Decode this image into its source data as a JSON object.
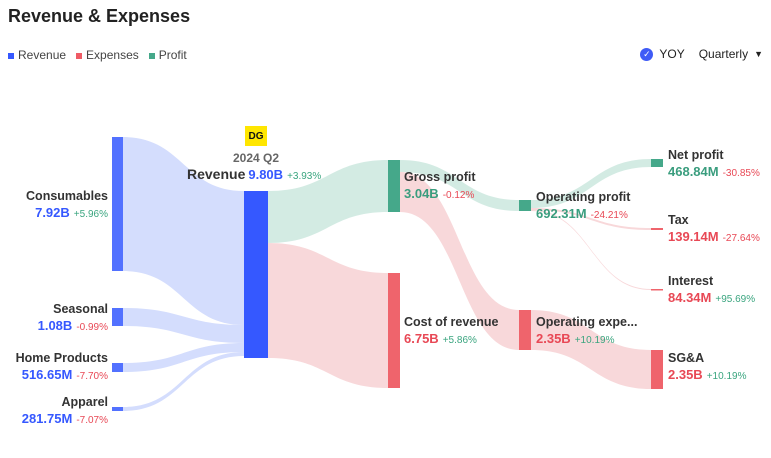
{
  "title": "Revenue & Expenses",
  "legend": [
    {
      "label": "Revenue",
      "color": "#3558ff"
    },
    {
      "label": "Expenses",
      "color": "#ef5b65"
    },
    {
      "label": "Profit",
      "color": "#45a88a"
    }
  ],
  "controls": {
    "yoy": "YOY",
    "period": "Quarterly"
  },
  "chart_data": {
    "type": "sankey",
    "period": "2024 Q2",
    "logo": "DG",
    "nodes": [
      {
        "id": "consumables",
        "name": "Consumables",
        "value": "7.92B",
        "change": "+5.96%"
      },
      {
        "id": "seasonal",
        "name": "Seasonal",
        "value": "1.08B",
        "change": "-0.99%"
      },
      {
        "id": "home",
        "name": "Home Products",
        "value": "516.65M",
        "change": "-7.70%"
      },
      {
        "id": "apparel",
        "name": "Apparel",
        "value": "281.75M",
        "change": "-7.07%"
      },
      {
        "id": "revenue",
        "name": "Revenue",
        "value": "9.80B",
        "change": "+3.93%"
      },
      {
        "id": "gross",
        "name": "Gross profit",
        "value": "3.04B",
        "change": "-0.12%"
      },
      {
        "id": "cor",
        "name": "Cost of revenue",
        "value": "6.75B",
        "change": "+5.86%"
      },
      {
        "id": "op",
        "name": "Operating profit",
        "value": "692.31M",
        "change": "-24.21%"
      },
      {
        "id": "opex",
        "name": "Operating expe...",
        "value": "2.35B",
        "change": "+10.19%"
      },
      {
        "id": "net",
        "name": "Net profit",
        "value": "468.84M",
        "change": "-30.85%"
      },
      {
        "id": "tax",
        "name": "Tax",
        "value": "139.14M",
        "change": "-27.64%"
      },
      {
        "id": "interest",
        "name": "Interest",
        "value": "84.34M",
        "change": "+95.69%"
      },
      {
        "id": "sga",
        "name": "SG&A",
        "value": "2.35B",
        "change": "+10.19%"
      }
    ],
    "links": [
      [
        "consumables",
        "revenue"
      ],
      [
        "seasonal",
        "revenue"
      ],
      [
        "home",
        "revenue"
      ],
      [
        "apparel",
        "revenue"
      ],
      [
        "revenue",
        "gross"
      ],
      [
        "revenue",
        "cor"
      ],
      [
        "gross",
        "op"
      ],
      [
        "gross",
        "opex"
      ],
      [
        "op",
        "net"
      ],
      [
        "op",
        "tax"
      ],
      [
        "op",
        "interest"
      ],
      [
        "opex",
        "sga"
      ]
    ]
  }
}
